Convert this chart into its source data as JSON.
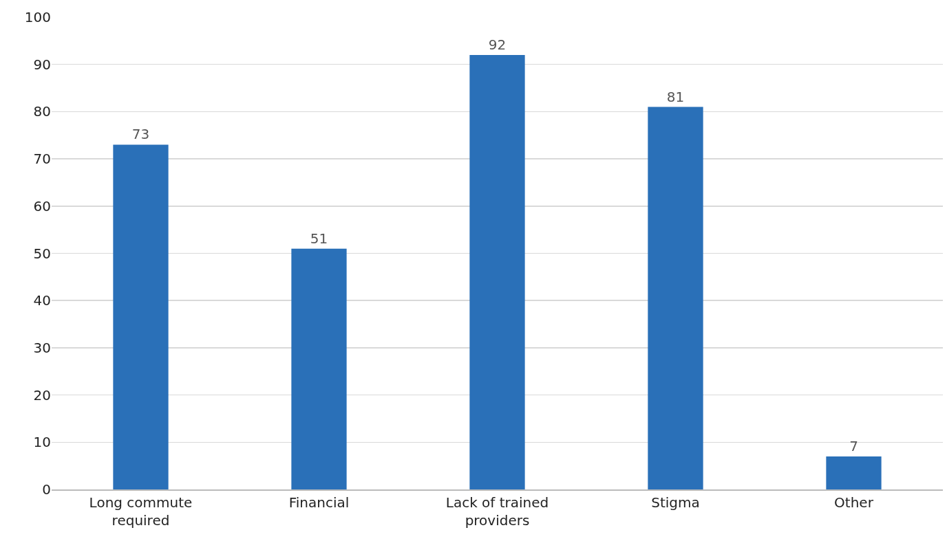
{
  "chart_data": {
    "type": "bar",
    "categories": [
      "Long commute required",
      "Financial",
      "Lack of trained providers",
      "Stigma",
      "Other"
    ],
    "values": [
      73,
      51,
      92,
      81,
      7
    ],
    "color": "#2a70b8",
    "ylim": [
      0,
      100
    ],
    "yticks": [
      0,
      10,
      20,
      30,
      40,
      50,
      60,
      70,
      80,
      90,
      100
    ],
    "grid": "y",
    "data_labels": true
  }
}
